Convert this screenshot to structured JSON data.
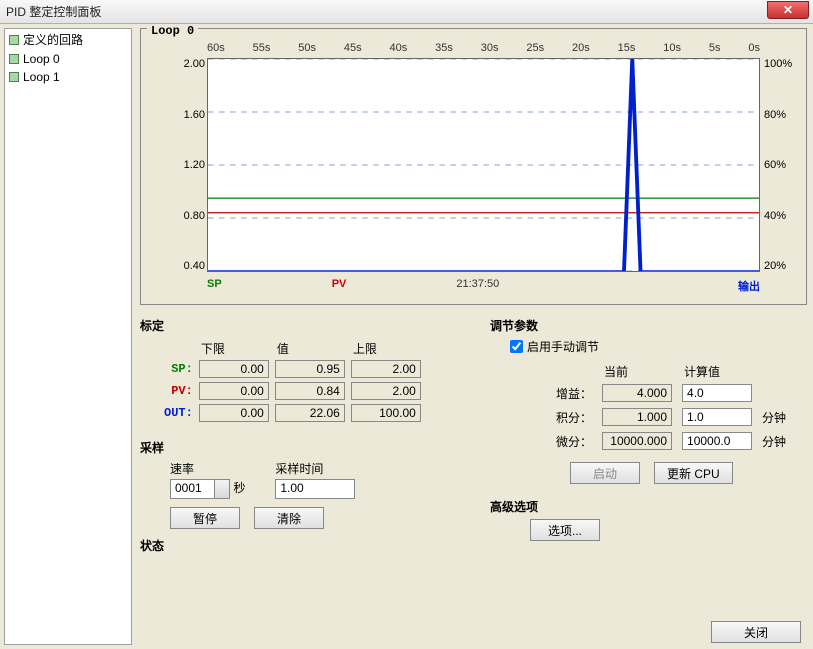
{
  "window": {
    "title": "PID 整定控制面板",
    "close": "✕"
  },
  "sidebar": {
    "items": [
      {
        "label": "定义的回路"
      },
      {
        "label": "Loop 0"
      },
      {
        "label": "Loop 1"
      }
    ]
  },
  "chart": {
    "title": "Loop 0",
    "x_ticks": [
      "60s",
      "55s",
      "50s",
      "45s",
      "40s",
      "35s",
      "30s",
      "25s",
      "20s",
      "15s",
      "10s",
      "5s",
      "0s"
    ],
    "y_left": [
      "2.00",
      "1.60",
      "1.20",
      "0.80",
      "0.40"
    ],
    "y_right": [
      "100%",
      "80%",
      "60%",
      "40%",
      "20%"
    ],
    "legend": {
      "sp": "SP",
      "pv": "PV",
      "time": "21:37:50",
      "out": "输出"
    },
    "colors": {
      "sp_line": "#008000",
      "pv_line": "#c00000",
      "out_line": "#0020d0",
      "grid_dash": "#6080d0",
      "bg": "#ffffff"
    },
    "series": {
      "sp_y": 0.95,
      "pv_y": 0.84,
      "out_baseline": 0.4,
      "out_spike_x_frac": 0.77,
      "out_spike_top": 2.0,
      "y_min": 0.4,
      "y_max": 2.0
    }
  },
  "calibration": {
    "title": "标定",
    "headers": {
      "low": "下限",
      "val": "值",
      "high": "上限"
    },
    "rows": {
      "sp": {
        "label": "SP:",
        "low": "0.00",
        "val": "0.95",
        "high": "2.00"
      },
      "pv": {
        "label": "PV:",
        "low": "0.00",
        "val": "0.84",
        "high": "2.00"
      },
      "out": {
        "label": "OUT:",
        "low": "0.00",
        "val": "22.06",
        "high": "100.00"
      }
    }
  },
  "sampling": {
    "title": "采样",
    "rate_label": "速率",
    "rate_value": "0001",
    "rate_unit": "秒",
    "time_label": "采样时间",
    "time_value": "1.00",
    "pause": "暂停",
    "clear": "清除"
  },
  "status": {
    "title": "状态"
  },
  "tuning": {
    "title": "调节参数",
    "manual_checkbox": "启用手动调节",
    "headers": {
      "current": "当前",
      "calc": "计算值"
    },
    "rows": {
      "gain": {
        "label": "增益：",
        "current": "4.000",
        "calc": "4.0",
        "unit": ""
      },
      "integ": {
        "label": "积分：",
        "current": "1.000",
        "calc": "1.0",
        "unit": "分钟"
      },
      "deriv": {
        "label": "微分：",
        "current": "10000.000",
        "calc": "10000.0",
        "unit": "分钟"
      }
    },
    "start": "启动",
    "update": "更新 CPU"
  },
  "advanced": {
    "title": "高级选项",
    "options": "选项..."
  },
  "footer": {
    "close": "关闭"
  }
}
